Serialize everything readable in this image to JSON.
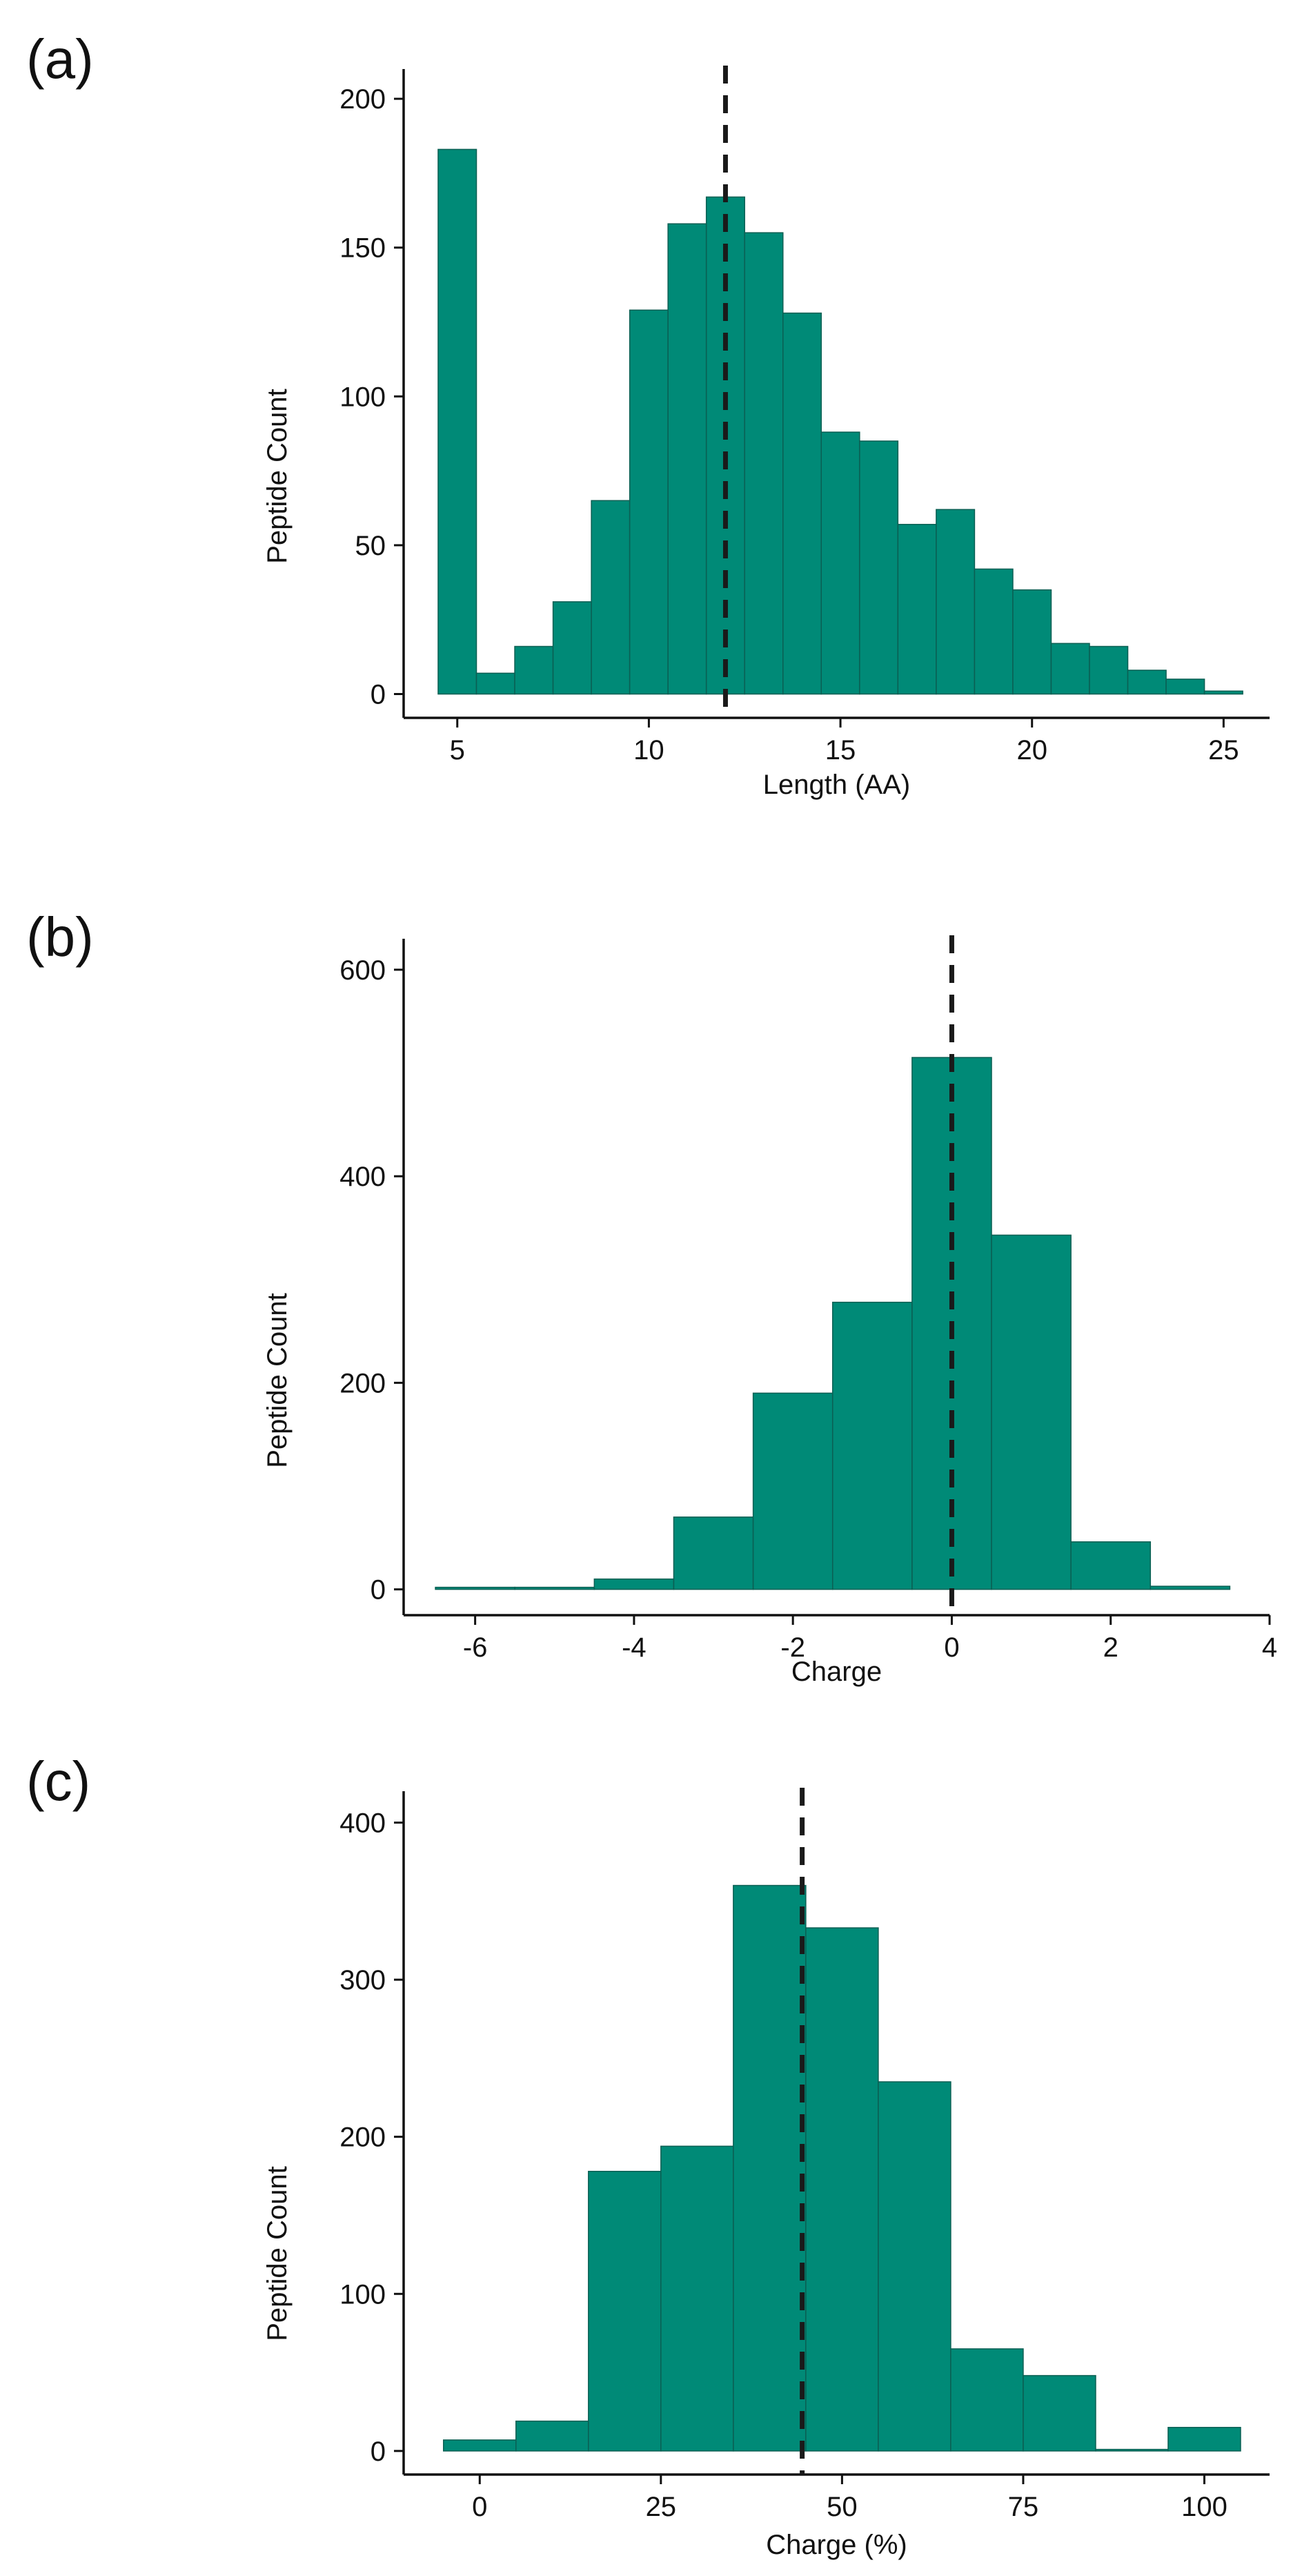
{
  "colors": {
    "bar": "#008a77",
    "bar_stroke": "#0b5f53",
    "axis": "#111111",
    "median": "#1a1a1a"
  },
  "chart_data": [
    {
      "panel_label": "(a)",
      "type": "bar",
      "xlabel": "Length (AA)",
      "ylabel": "Peptide Count",
      "x_bins": [
        5,
        6,
        7,
        8,
        9,
        10,
        11,
        12,
        13,
        14,
        15,
        16,
        17,
        18,
        19,
        20,
        21,
        22,
        23,
        24,
        25
      ],
      "values": [
        183,
        7,
        16,
        31,
        65,
        129,
        158,
        167,
        155,
        128,
        88,
        85,
        57,
        62,
        42,
        35,
        17,
        16,
        8,
        5,
        1
      ],
      "bin_width": 1,
      "xlim": [
        3.6,
        26.2
      ],
      "ylim": [
        -8,
        210
      ],
      "x_ticks": [
        5,
        10,
        15,
        20,
        25
      ],
      "y_ticks": [
        0,
        50,
        100,
        150,
        200
      ],
      "median_line_x": 12
    },
    {
      "panel_label": "(b)",
      "type": "bar",
      "xlabel": "Charge",
      "ylabel": "Peptide Count",
      "x_bins": [
        -6,
        -5,
        -4,
        -3,
        -2,
        -1,
        0,
        1,
        2,
        3
      ],
      "values": [
        2,
        2,
        10,
        70,
        190,
        278,
        515,
        343,
        46,
        3
      ],
      "bin_width": 1,
      "xlim": [
        -6.9,
        4.0
      ],
      "ylim": [
        -25,
        630
      ],
      "x_ticks": [
        -6,
        -4,
        -2,
        0,
        2,
        4
      ],
      "y_ticks": [
        0,
        200,
        400,
        600
      ],
      "median_line_x": 0
    },
    {
      "panel_label": "(c)",
      "type": "bar",
      "xlabel": "Charge (%)",
      "ylabel": "Peptide Count",
      "x_bins": [
        0,
        10,
        20,
        30,
        40,
        50,
        60,
        70,
        80,
        90,
        100
      ],
      "values": [
        7,
        19,
        178,
        194,
        360,
        333,
        235,
        65,
        48,
        1,
        15
      ],
      "bin_width": 10,
      "xlim": [
        -10.5,
        109
      ],
      "ylim": [
        -15,
        420
      ],
      "x_ticks": [
        0,
        25,
        50,
        75,
        100
      ],
      "y_ticks": [
        0,
        100,
        200,
        300,
        400
      ],
      "median_line_x": 44.5
    }
  ]
}
